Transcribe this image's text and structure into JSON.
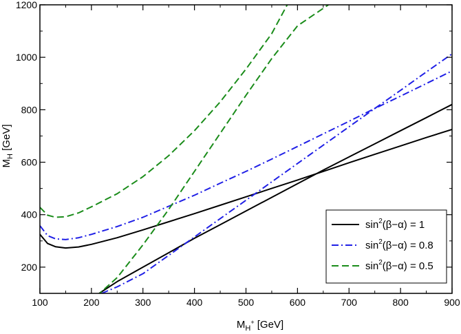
{
  "chart_data": {
    "type": "line",
    "xlabel": {
      "main": "M",
      "sub": "H",
      "sup": "+",
      "unit": " [GeV]"
    },
    "ylabel": {
      "main": "M",
      "sub": "H",
      "unit": " [GeV]"
    },
    "xlim": [
      100,
      900
    ],
    "ylim": [
      100,
      1200
    ],
    "xticks": [
      100,
      200,
      300,
      400,
      500,
      600,
      700,
      800,
      900
    ],
    "yticks": [
      200,
      400,
      600,
      800,
      1000,
      1200
    ],
    "grid": false,
    "legend_position": "bottom-right",
    "series": [
      {
        "name": "sin²(β−α) = 1",
        "legend": {
          "pre": "sin",
          "sup": "2",
          "post": "(β−α) = 1"
        },
        "color": "#000000",
        "dash": "solid",
        "branches": [
          [
            [
              100,
              325
            ],
            [
              115,
              290
            ],
            [
              130,
              278
            ],
            [
              150,
              273
            ],
            [
              175,
              277
            ],
            [
              200,
              287
            ],
            [
              250,
              312
            ],
            [
              300,
              342
            ],
            [
              350,
              373
            ],
            [
              400,
              404
            ],
            [
              450,
              436
            ],
            [
              500,
              468
            ],
            [
              550,
              500
            ],
            [
              600,
              532
            ],
            [
              650,
              565
            ],
            [
              700,
              598
            ],
            [
              750,
              630
            ],
            [
              800,
              662
            ],
            [
              850,
              694
            ],
            [
              900,
              725
            ],
            [
              930,
              745
            ]
          ],
          [
            [
              215,
              100
            ],
            [
              250,
              145
            ],
            [
              300,
              200
            ],
            [
              350,
              255
            ],
            [
              400,
              310
            ],
            [
              450,
              362
            ],
            [
              500,
              414
            ],
            [
              550,
              466
            ],
            [
              600,
              518
            ],
            [
              650,
              570
            ],
            [
              700,
              620
            ],
            [
              750,
              670
            ],
            [
              800,
              720
            ],
            [
              850,
              770
            ],
            [
              900,
              820
            ],
            [
              930,
              850
            ]
          ]
        ]
      },
      {
        "name": "sin²(β−α) = 0.8",
        "legend": {
          "pre": "sin",
          "sup": "2",
          "post": "(β−α) = 0.8"
        },
        "color": "#1f1fe6",
        "dash": "dashdot",
        "branches": [
          [
            [
              100,
              358
            ],
            [
              115,
              320
            ],
            [
              130,
              308
            ],
            [
              150,
              305
            ],
            [
              175,
              312
            ],
            [
              200,
              325
            ],
            [
              250,
              355
            ],
            [
              300,
              390
            ],
            [
              350,
              432
            ],
            [
              400,
              474
            ],
            [
              450,
              520
            ],
            [
              500,
              565
            ],
            [
              550,
              612
            ],
            [
              600,
              660
            ],
            [
              650,
              708
            ],
            [
              700,
              756
            ],
            [
              750,
              805
            ],
            [
              800,
              852
            ],
            [
              850,
              900
            ],
            [
              900,
              948
            ],
            [
              930,
              976
            ]
          ],
          [
            [
              220,
              100
            ],
            [
              250,
              125
            ],
            [
              300,
              175
            ],
            [
              350,
              245
            ],
            [
              400,
              315
            ],
            [
              450,
              385
            ],
            [
              500,
              455
            ],
            [
              550,
              525
            ],
            [
              600,
              595
            ],
            [
              650,
              665
            ],
            [
              700,
              735
            ],
            [
              750,
              805
            ],
            [
              800,
              874
            ],
            [
              850,
              944
            ],
            [
              900,
              1013
            ],
            [
              930,
              1055
            ]
          ]
        ]
      },
      {
        "name": "sin²(β−α) = 0.5",
        "legend": {
          "pre": "sin",
          "sup": "2",
          "post": "(β−α) = 0.5"
        },
        "color": "#1a8c1a",
        "dash": "dashed",
        "branches": [
          [
            [
              100,
              428
            ],
            [
              115,
              398
            ],
            [
              130,
              390
            ],
            [
              150,
              392
            ],
            [
              175,
              407
            ],
            [
              200,
              430
            ],
            [
              250,
              480
            ],
            [
              300,
              545
            ],
            [
              350,
              625
            ],
            [
              400,
              720
            ],
            [
              450,
              830
            ],
            [
              500,
              955
            ],
            [
              550,
              1090
            ],
            [
              580,
              1200
            ]
          ],
          [
            [
              210,
              90
            ],
            [
              250,
              160
            ],
            [
              300,
              285
            ],
            [
              350,
              420
            ],
            [
              400,
              565
            ],
            [
              450,
              710
            ],
            [
              500,
              855
            ],
            [
              550,
              995
            ],
            [
              600,
              1120
            ],
            [
              660,
              1200
            ]
          ]
        ]
      }
    ]
  }
}
